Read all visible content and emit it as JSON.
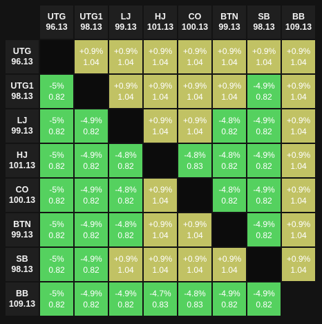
{
  "positions": [
    "UTG",
    "UTG1",
    "LJ",
    "HJ",
    "CO",
    "BTN",
    "SB",
    "BB"
  ],
  "stacks": [
    "96.13",
    "98.13",
    "99.13",
    "101.13",
    "100.13",
    "99.13",
    "98.13",
    "109.13"
  ],
  "colors": {
    "green": "#55d15f",
    "olive": "#c1c264",
    "diagonal": "#0c0c0c",
    "header": "#1f1f1f",
    "background": "#131313"
  },
  "matrix": [
    [
      null,
      {
        "pct": "+0.9%",
        "ratio": "1.04"
      },
      {
        "pct": "+0.9%",
        "ratio": "1.04"
      },
      {
        "pct": "+0.9%",
        "ratio": "1.04"
      },
      {
        "pct": "+0.9%",
        "ratio": "1.04"
      },
      {
        "pct": "+0.9%",
        "ratio": "1.04"
      },
      {
        "pct": "+0.9%",
        "ratio": "1.04"
      },
      {
        "pct": "+0.9%",
        "ratio": "1.04"
      }
    ],
    [
      {
        "pct": "-5%",
        "ratio": "0.82"
      },
      null,
      {
        "pct": "+0.9%",
        "ratio": "1.04"
      },
      {
        "pct": "+0.9%",
        "ratio": "1.04"
      },
      {
        "pct": "+0.9%",
        "ratio": "1.04"
      },
      {
        "pct": "+0.9%",
        "ratio": "1.04"
      },
      {
        "pct": "-4.9%",
        "ratio": "0.82"
      },
      {
        "pct": "+0.9%",
        "ratio": "1.04"
      }
    ],
    [
      {
        "pct": "-5%",
        "ratio": "0.82"
      },
      {
        "pct": "-4.9%",
        "ratio": "0.82"
      },
      null,
      {
        "pct": "+0.9%",
        "ratio": "1.04"
      },
      {
        "pct": "+0.9%",
        "ratio": "1.04"
      },
      {
        "pct": "-4.8%",
        "ratio": "0.82"
      },
      {
        "pct": "-4.9%",
        "ratio": "0.82"
      },
      {
        "pct": "+0.9%",
        "ratio": "1.04"
      }
    ],
    [
      {
        "pct": "-5%",
        "ratio": "0.82"
      },
      {
        "pct": "-4.9%",
        "ratio": "0.82"
      },
      {
        "pct": "-4.8%",
        "ratio": "0.82"
      },
      null,
      {
        "pct": "-4.8%",
        "ratio": "0.83"
      },
      {
        "pct": "-4.8%",
        "ratio": "0.82"
      },
      {
        "pct": "-4.9%",
        "ratio": "0.82"
      },
      {
        "pct": "+0.9%",
        "ratio": "1.04"
      }
    ],
    [
      {
        "pct": "-5%",
        "ratio": "0.82"
      },
      {
        "pct": "-4.9%",
        "ratio": "0.82"
      },
      {
        "pct": "-4.8%",
        "ratio": "0.82"
      },
      {
        "pct": "+0.9%",
        "ratio": "1.04"
      },
      null,
      {
        "pct": "-4.8%",
        "ratio": "0.82"
      },
      {
        "pct": "-4.9%",
        "ratio": "0.82"
      },
      {
        "pct": "+0.9%",
        "ratio": "1.04"
      }
    ],
    [
      {
        "pct": "-5%",
        "ratio": "0.82"
      },
      {
        "pct": "-4.9%",
        "ratio": "0.82"
      },
      {
        "pct": "-4.8%",
        "ratio": "0.82"
      },
      {
        "pct": "+0.9%",
        "ratio": "1.04"
      },
      {
        "pct": "+0.9%",
        "ratio": "1.04"
      },
      null,
      {
        "pct": "-4.9%",
        "ratio": "0.82"
      },
      {
        "pct": "+0.9%",
        "ratio": "1.04"
      }
    ],
    [
      {
        "pct": "-5%",
        "ratio": "0.82"
      },
      {
        "pct": "-4.9%",
        "ratio": "0.82"
      },
      {
        "pct": "+0.9%",
        "ratio": "1.04"
      },
      {
        "pct": "+0.9%",
        "ratio": "1.04"
      },
      {
        "pct": "+0.9%",
        "ratio": "1.04"
      },
      {
        "pct": "+0.9%",
        "ratio": "1.04"
      },
      null,
      {
        "pct": "+0.9%",
        "ratio": "1.04"
      }
    ],
    [
      {
        "pct": "-5%",
        "ratio": "0.82"
      },
      {
        "pct": "-4.9%",
        "ratio": "0.82"
      },
      {
        "pct": "-4.9%",
        "ratio": "0.82"
      },
      {
        "pct": "-4.7%",
        "ratio": "0.83"
      },
      {
        "pct": "-4.8%",
        "ratio": "0.83"
      },
      {
        "pct": "-4.9%",
        "ratio": "0.82"
      },
      {
        "pct": "-4.9%",
        "ratio": "0.82"
      },
      "blank"
    ]
  ]
}
